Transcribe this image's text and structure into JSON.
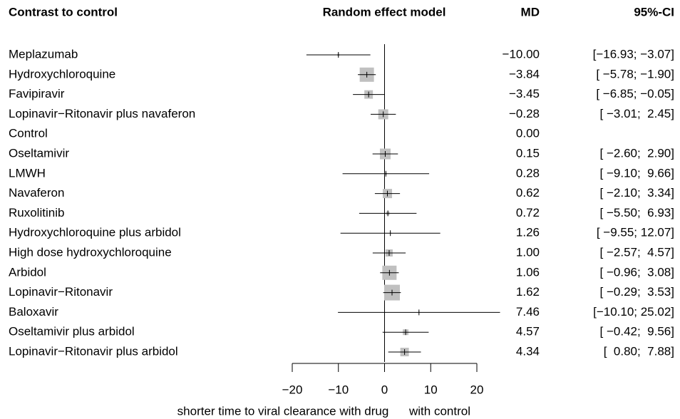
{
  "chart_data": {
    "type": "forest",
    "headers": [
      "Contrast to control",
      "Random effect model",
      "MD",
      "95%-CI"
    ],
    "categories": [
      "Meplazumab",
      "Hydroxychloroquine",
      "Favipiravir",
      "Lopinavir−Ritonavir plus navaferon",
      "Control",
      "Oseltamivir",
      "LMWH",
      "Navaferon",
      "Ruxolitinib",
      "Hydroxychloroquine plus arbidol",
      "High dose hydroxychloroquine",
      "Arbidol",
      "Lopinavir−Ritonavir",
      "Baloxavir",
      "Oseltamivir plus arbidol",
      "Lopinavir−Ritonavir plus arbidol"
    ],
    "values": [
      -10.0,
      -3.84,
      -3.45,
      -0.28,
      0.0,
      0.15,
      0.28,
      0.62,
      0.72,
      1.26,
      1.0,
      1.06,
      1.62,
      7.46,
      4.57,
      4.34
    ],
    "value_labels": [
      "−10.00",
      "−3.84",
      "−3.45",
      "−0.28",
      "0.00",
      "0.15",
      "0.28",
      "0.62",
      "0.72",
      "1.26",
      "1.00",
      "1.06",
      "1.62",
      "7.46",
      "4.57",
      "4.34"
    ],
    "lower": [
      -16.93,
      -5.78,
      -6.85,
      -3.01,
      null,
      -2.6,
      -9.1,
      -2.1,
      -5.5,
      -9.55,
      -2.57,
      -0.96,
      -0.29,
      -10.1,
      -0.42,
      0.8
    ],
    "upper": [
      -3.07,
      -1.9,
      -0.05,
      2.45,
      null,
      2.9,
      9.66,
      3.34,
      6.93,
      12.07,
      4.57,
      3.08,
      3.53,
      25.02,
      9.56,
      7.88
    ],
    "ci_labels": [
      "[−16.93; −3.07]",
      "[ −5.78; −1.90]",
      "[ −6.85; −0.05]",
      "[ −3.01;  2.45]",
      null,
      "[ −2.60;  2.90]",
      "[ −9.10;  9.66]",
      "[ −2.10;  3.34]",
      "[ −5.50;  6.93]",
      "[ −9.55; 12.07]",
      "[ −2.57;  4.57]",
      "[ −0.96;  3.08]",
      "[ −0.29;  3.53]",
      "[−10.10; 25.02]",
      "[ −0.42;  9.56]",
      "[  0.80;  7.88]"
    ],
    "weights": [
      9,
      400,
      144,
      196,
      0,
      225,
      9,
      169,
      25,
      4,
      100,
      400,
      484,
      4,
      64,
      144
    ],
    "box_color": "#c0c0c0",
    "xlim": [
      -20,
      20
    ],
    "xticks": [
      {
        "value": -20,
        "label": "−20"
      },
      {
        "value": -10,
        "label": "−10"
      },
      0,
      10,
      20
    ],
    "xlabel_left": "shorter time to viral clearance with drug",
    "xlabel_right": "with control"
  }
}
